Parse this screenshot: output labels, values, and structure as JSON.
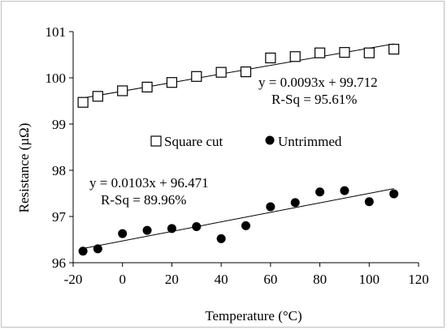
{
  "chart_data": {
    "type": "scatter",
    "title": "",
    "xlabel": "Temperature (°C)",
    "ylabel": "Resistance (µΩ)",
    "xlim": [
      -20,
      120
    ],
    "ylim": [
      96,
      101
    ],
    "x_ticks": [
      "-20",
      "0",
      "20",
      "40",
      "60",
      "80",
      "100",
      "120"
    ],
    "y_ticks": [
      "96",
      "97",
      "98",
      "99",
      "100",
      "101"
    ],
    "grid": false,
    "legend": {
      "placement": "center",
      "entries": [
        "Square cut",
        "Untrimmed"
      ]
    },
    "series": [
      {
        "name": "Square cut",
        "marker": "open-square",
        "color": "#000000",
        "x": [
          -16,
          -10,
          0,
          10,
          20,
          30,
          40,
          50,
          60,
          70,
          80,
          90,
          100,
          110
        ],
        "y": [
          99.47,
          99.6,
          99.72,
          99.8,
          99.9,
          100.03,
          100.12,
          100.13,
          100.43,
          100.46,
          100.54,
          100.55,
          100.54,
          100.62
        ],
        "trendline": {
          "slope": 0.0093,
          "intercept": 99.712,
          "x_range": [
            -16,
            110
          ],
          "equation": "y = 0.0093x + 99.712",
          "r_sq": "R-Sq = 95.61%"
        }
      },
      {
        "name": "Untrimmed",
        "marker": "filled-circle",
        "color": "#000000",
        "x": [
          -16,
          -10,
          0,
          10,
          20,
          30,
          40,
          50,
          60,
          70,
          80,
          90,
          100,
          110
        ],
        "y": [
          96.25,
          96.3,
          96.63,
          96.7,
          96.74,
          96.78,
          96.52,
          96.8,
          97.21,
          97.3,
          97.53,
          97.56,
          97.32,
          97.49
        ],
        "trendline": {
          "slope": 0.0103,
          "intercept": 96.471,
          "x_range": [
            -16,
            110
          ],
          "equation": "y = 0.0103x + 96.471",
          "r_sq": "R-Sq = 89.96%"
        }
      }
    ]
  }
}
